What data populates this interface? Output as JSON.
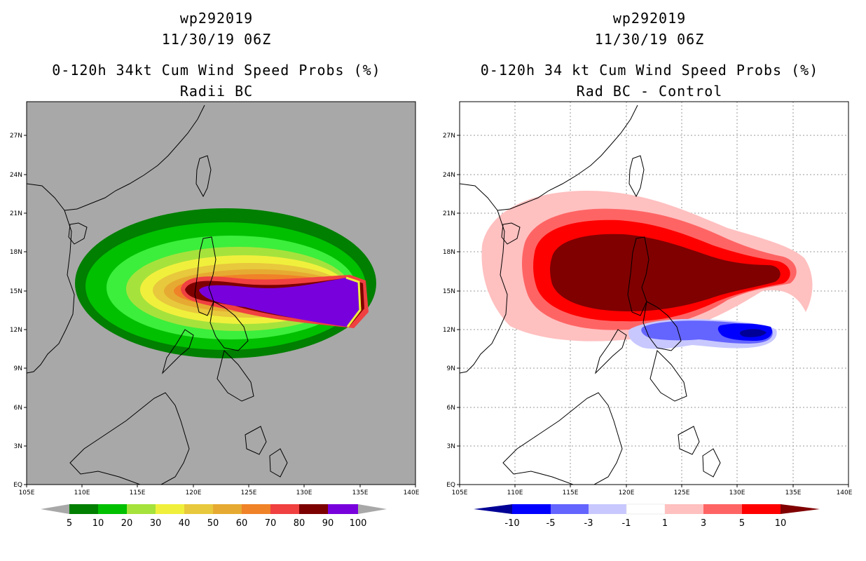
{
  "panels": [
    {
      "storm_id": "wp292019",
      "datetime": "11/30/19 06Z",
      "product": "0-120h 34kt Cum Wind Speed Probs (%)",
      "subtitle": "Radii BC",
      "background": "#a8a8a8",
      "colorbar": {
        "labels": [
          "5",
          "10",
          "20",
          "30",
          "40",
          "50",
          "60",
          "70",
          "80",
          "90",
          "100"
        ],
        "colors": [
          "#007f00",
          "#00c000",
          "#3cef3c",
          "#a6e23c",
          "#f0f03c",
          "#e8c83c",
          "#e6aa32",
          "#f08228",
          "#f04040",
          "#7d0000",
          "#7800dc"
        ],
        "arrow_color": "#a8a8a8"
      }
    },
    {
      "storm_id": "wp292019",
      "datetime": "11/30/19 06Z",
      "product": "0-120h 34 kt Cum Wind Speed Probs (%)",
      "subtitle": "Rad BC - Control",
      "background": "#ffffff",
      "colorbar": {
        "labels": [
          "-10",
          "-5",
          "-3",
          "-1",
          "1",
          "3",
          "5",
          "10"
        ],
        "colors": [
          "#0000ff",
          "#6464ff",
          "#c8c8ff",
          "#ffffff",
          "#ffc0c0",
          "#ff6464",
          "#ff0000"
        ],
        "arrow_left_color": "#000096",
        "arrow_right_color": "#800000"
      }
    }
  ],
  "map": {
    "lat_labels": [
      "27N",
      "24N",
      "21N",
      "18N",
      "15N",
      "12N",
      "9N",
      "6N",
      "3N",
      "EQ"
    ],
    "lon_labels": [
      "105E",
      "110E",
      "115E",
      "120E",
      "125E",
      "130E",
      "135E",
      "140E"
    ]
  }
}
